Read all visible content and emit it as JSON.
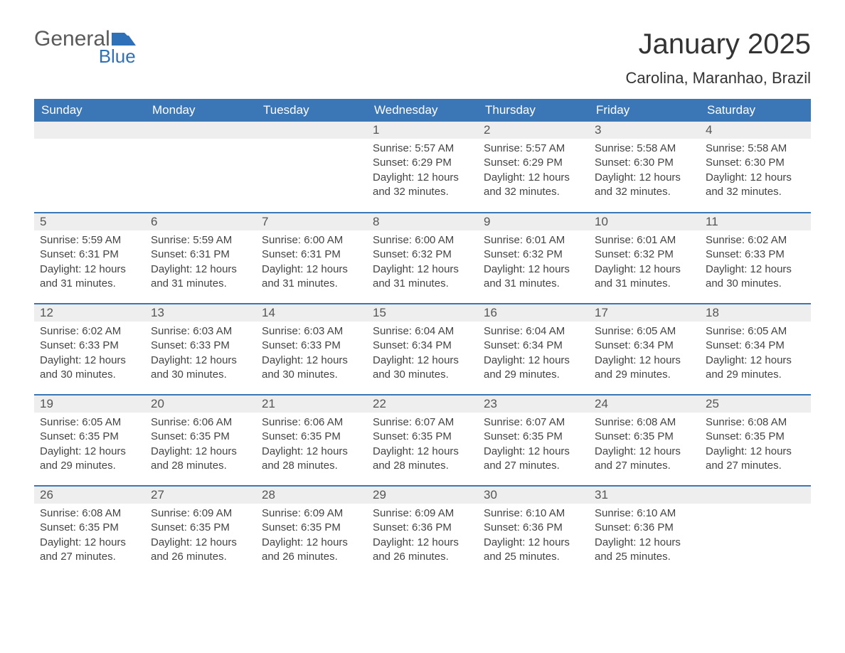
{
  "brand": {
    "word1": "General",
    "word2": "Blue",
    "accent_color": "#2f71b8",
    "text_color": "#5a5a5a"
  },
  "title": "January 2025",
  "location": "Carolina, Maranhao, Brazil",
  "colors": {
    "header_bg": "#3b76b6",
    "header_text": "#ffffff",
    "daynum_bg": "#eeeeee",
    "daynum_text": "#555555",
    "body_text": "#444444",
    "row_divider": "#3b76b6",
    "page_bg": "#ffffff"
  },
  "typography": {
    "title_fontsize_pt": 30,
    "location_fontsize_pt": 16,
    "header_fontsize_pt": 13,
    "daynum_fontsize_pt": 13,
    "body_fontsize_pt": 11
  },
  "layout": {
    "columns": 7,
    "rows": 5,
    "first_weekday": "Sunday"
  },
  "weekdays": [
    "Sunday",
    "Monday",
    "Tuesday",
    "Wednesday",
    "Thursday",
    "Friday",
    "Saturday"
  ],
  "weeks": [
    [
      null,
      null,
      null,
      {
        "n": "1",
        "sr": "Sunrise: 5:57 AM",
        "ss": "Sunset: 6:29 PM",
        "dl": "Daylight: 12 hours and 32 minutes."
      },
      {
        "n": "2",
        "sr": "Sunrise: 5:57 AM",
        "ss": "Sunset: 6:29 PM",
        "dl": "Daylight: 12 hours and 32 minutes."
      },
      {
        "n": "3",
        "sr": "Sunrise: 5:58 AM",
        "ss": "Sunset: 6:30 PM",
        "dl": "Daylight: 12 hours and 32 minutes."
      },
      {
        "n": "4",
        "sr": "Sunrise: 5:58 AM",
        "ss": "Sunset: 6:30 PM",
        "dl": "Daylight: 12 hours and 32 minutes."
      }
    ],
    [
      {
        "n": "5",
        "sr": "Sunrise: 5:59 AM",
        "ss": "Sunset: 6:31 PM",
        "dl": "Daylight: 12 hours and 31 minutes."
      },
      {
        "n": "6",
        "sr": "Sunrise: 5:59 AM",
        "ss": "Sunset: 6:31 PM",
        "dl": "Daylight: 12 hours and 31 minutes."
      },
      {
        "n": "7",
        "sr": "Sunrise: 6:00 AM",
        "ss": "Sunset: 6:31 PM",
        "dl": "Daylight: 12 hours and 31 minutes."
      },
      {
        "n": "8",
        "sr": "Sunrise: 6:00 AM",
        "ss": "Sunset: 6:32 PM",
        "dl": "Daylight: 12 hours and 31 minutes."
      },
      {
        "n": "9",
        "sr": "Sunrise: 6:01 AM",
        "ss": "Sunset: 6:32 PM",
        "dl": "Daylight: 12 hours and 31 minutes."
      },
      {
        "n": "10",
        "sr": "Sunrise: 6:01 AM",
        "ss": "Sunset: 6:32 PM",
        "dl": "Daylight: 12 hours and 31 minutes."
      },
      {
        "n": "11",
        "sr": "Sunrise: 6:02 AM",
        "ss": "Sunset: 6:33 PM",
        "dl": "Daylight: 12 hours and 30 minutes."
      }
    ],
    [
      {
        "n": "12",
        "sr": "Sunrise: 6:02 AM",
        "ss": "Sunset: 6:33 PM",
        "dl": "Daylight: 12 hours and 30 minutes."
      },
      {
        "n": "13",
        "sr": "Sunrise: 6:03 AM",
        "ss": "Sunset: 6:33 PM",
        "dl": "Daylight: 12 hours and 30 minutes."
      },
      {
        "n": "14",
        "sr": "Sunrise: 6:03 AM",
        "ss": "Sunset: 6:33 PM",
        "dl": "Daylight: 12 hours and 30 minutes."
      },
      {
        "n": "15",
        "sr": "Sunrise: 6:04 AM",
        "ss": "Sunset: 6:34 PM",
        "dl": "Daylight: 12 hours and 30 minutes."
      },
      {
        "n": "16",
        "sr": "Sunrise: 6:04 AM",
        "ss": "Sunset: 6:34 PM",
        "dl": "Daylight: 12 hours and 29 minutes."
      },
      {
        "n": "17",
        "sr": "Sunrise: 6:05 AM",
        "ss": "Sunset: 6:34 PM",
        "dl": "Daylight: 12 hours and 29 minutes."
      },
      {
        "n": "18",
        "sr": "Sunrise: 6:05 AM",
        "ss": "Sunset: 6:34 PM",
        "dl": "Daylight: 12 hours and 29 minutes."
      }
    ],
    [
      {
        "n": "19",
        "sr": "Sunrise: 6:05 AM",
        "ss": "Sunset: 6:35 PM",
        "dl": "Daylight: 12 hours and 29 minutes."
      },
      {
        "n": "20",
        "sr": "Sunrise: 6:06 AM",
        "ss": "Sunset: 6:35 PM",
        "dl": "Daylight: 12 hours and 28 minutes."
      },
      {
        "n": "21",
        "sr": "Sunrise: 6:06 AM",
        "ss": "Sunset: 6:35 PM",
        "dl": "Daylight: 12 hours and 28 minutes."
      },
      {
        "n": "22",
        "sr": "Sunrise: 6:07 AM",
        "ss": "Sunset: 6:35 PM",
        "dl": "Daylight: 12 hours and 28 minutes."
      },
      {
        "n": "23",
        "sr": "Sunrise: 6:07 AM",
        "ss": "Sunset: 6:35 PM",
        "dl": "Daylight: 12 hours and 27 minutes."
      },
      {
        "n": "24",
        "sr": "Sunrise: 6:08 AM",
        "ss": "Sunset: 6:35 PM",
        "dl": "Daylight: 12 hours and 27 minutes."
      },
      {
        "n": "25",
        "sr": "Sunrise: 6:08 AM",
        "ss": "Sunset: 6:35 PM",
        "dl": "Daylight: 12 hours and 27 minutes."
      }
    ],
    [
      {
        "n": "26",
        "sr": "Sunrise: 6:08 AM",
        "ss": "Sunset: 6:35 PM",
        "dl": "Daylight: 12 hours and 27 minutes."
      },
      {
        "n": "27",
        "sr": "Sunrise: 6:09 AM",
        "ss": "Sunset: 6:35 PM",
        "dl": "Daylight: 12 hours and 26 minutes."
      },
      {
        "n": "28",
        "sr": "Sunrise: 6:09 AM",
        "ss": "Sunset: 6:35 PM",
        "dl": "Daylight: 12 hours and 26 minutes."
      },
      {
        "n": "29",
        "sr": "Sunrise: 6:09 AM",
        "ss": "Sunset: 6:36 PM",
        "dl": "Daylight: 12 hours and 26 minutes."
      },
      {
        "n": "30",
        "sr": "Sunrise: 6:10 AM",
        "ss": "Sunset: 6:36 PM",
        "dl": "Daylight: 12 hours and 25 minutes."
      },
      {
        "n": "31",
        "sr": "Sunrise: 6:10 AM",
        "ss": "Sunset: 6:36 PM",
        "dl": "Daylight: 12 hours and 25 minutes."
      },
      null
    ]
  ]
}
